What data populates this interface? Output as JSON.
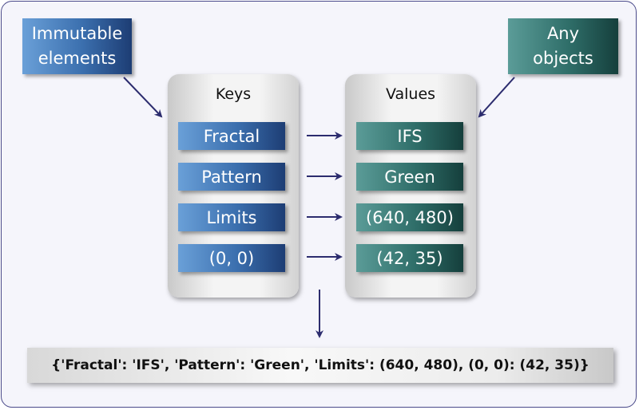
{
  "callouts": {
    "keys_note": [
      "Immutable",
      "elements"
    ],
    "values_note": [
      "Any",
      "objects"
    ]
  },
  "keys_panel": {
    "title": "Keys",
    "items": [
      "Fractal",
      "Pattern",
      "Limits",
      "(0, 0)"
    ]
  },
  "values_panel": {
    "title": "Values",
    "items": [
      "IFS",
      "Green",
      "(640, 480)",
      "(42, 35)"
    ]
  },
  "result": {
    "text": "{'Fractal': 'IFS', 'Pattern': 'Green', 'Limits': (640, 480), (0, 0): (42, 35)}"
  },
  "colors": {
    "key_box": "#3b6fae",
    "value_box": "#2f6e69",
    "arrow": "#2c2c6e"
  }
}
